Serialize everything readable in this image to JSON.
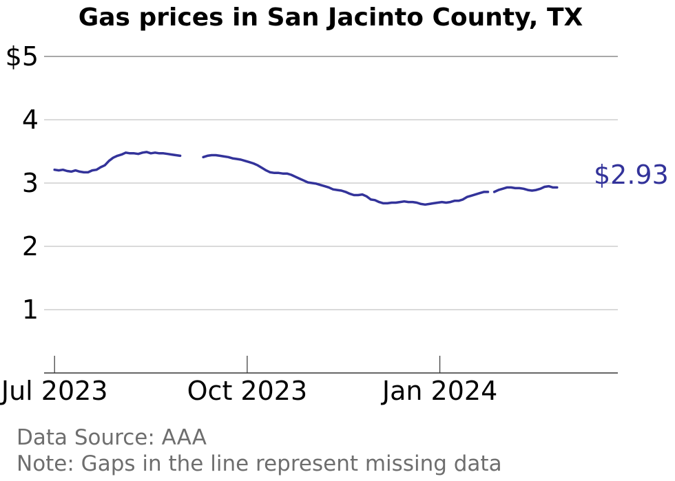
{
  "chart_data": {
    "type": "line",
    "title": "Gas prices in San Jacinto County, TX",
    "y_ticks": [
      "$5",
      "4",
      "3",
      "2",
      "1"
    ],
    "y_tick_values": [
      5,
      4,
      3,
      2,
      1
    ],
    "ylim": [
      0,
      5
    ],
    "x_ticks": [
      "Jul 2023",
      "Oct 2023",
      "Jan 2024"
    ],
    "x_tick_dates": [
      "2023-07-01",
      "2023-10-01",
      "2024-01-01"
    ],
    "xlim": [
      "2023-06-26",
      "2024-03-26"
    ],
    "grid": true,
    "last_value_label": "$2.93",
    "line_color": "#33339a",
    "series": [
      {
        "segments": [
          [
            [
              "2023-07-01",
              3.21
            ],
            [
              "2023-07-03",
              3.2
            ],
            [
              "2023-07-05",
              3.21
            ],
            [
              "2023-07-07",
              3.19
            ],
            [
              "2023-07-09",
              3.18
            ],
            [
              "2023-07-11",
              3.2
            ],
            [
              "2023-07-13",
              3.18
            ],
            [
              "2023-07-15",
              3.17
            ],
            [
              "2023-07-17",
              3.17
            ],
            [
              "2023-07-19",
              3.2
            ],
            [
              "2023-07-21",
              3.21
            ],
            [
              "2023-07-23",
              3.25
            ],
            [
              "2023-07-25",
              3.28
            ],
            [
              "2023-07-27",
              3.35
            ],
            [
              "2023-07-29",
              3.4
            ],
            [
              "2023-07-31",
              3.43
            ],
            [
              "2023-08-02",
              3.45
            ],
            [
              "2023-08-04",
              3.48
            ],
            [
              "2023-08-06",
              3.47
            ],
            [
              "2023-08-08",
              3.47
            ],
            [
              "2023-08-10",
              3.46
            ],
            [
              "2023-08-12",
              3.48
            ],
            [
              "2023-08-14",
              3.49
            ],
            [
              "2023-08-16",
              3.47
            ],
            [
              "2023-08-18",
              3.48
            ],
            [
              "2023-08-20",
              3.47
            ],
            [
              "2023-08-22",
              3.47
            ],
            [
              "2023-08-24",
              3.46
            ],
            [
              "2023-08-26",
              3.45
            ],
            [
              "2023-08-28",
              3.44
            ],
            [
              "2023-08-30",
              3.43
            ]
          ],
          [
            [
              "2023-09-10",
              3.41
            ],
            [
              "2023-09-12",
              3.43
            ],
            [
              "2023-09-14",
              3.44
            ],
            [
              "2023-09-16",
              3.44
            ],
            [
              "2023-09-18",
              3.43
            ],
            [
              "2023-09-20",
              3.42
            ],
            [
              "2023-09-22",
              3.41
            ],
            [
              "2023-09-24",
              3.39
            ],
            [
              "2023-09-26",
              3.38
            ],
            [
              "2023-09-28",
              3.37
            ],
            [
              "2023-09-30",
              3.35
            ],
            [
              "2023-10-02",
              3.33
            ],
            [
              "2023-10-04",
              3.31
            ],
            [
              "2023-10-06",
              3.28
            ],
            [
              "2023-10-08",
              3.24
            ],
            [
              "2023-10-10",
              3.2
            ],
            [
              "2023-10-12",
              3.17
            ],
            [
              "2023-10-14",
              3.16
            ],
            [
              "2023-10-16",
              3.16
            ],
            [
              "2023-10-18",
              3.15
            ],
            [
              "2023-10-20",
              3.15
            ],
            [
              "2023-10-22",
              3.13
            ],
            [
              "2023-10-24",
              3.1
            ],
            [
              "2023-10-26",
              3.07
            ],
            [
              "2023-10-28",
              3.04
            ],
            [
              "2023-10-30",
              3.01
            ],
            [
              "2023-11-01",
              3.0
            ],
            [
              "2023-11-03",
              2.99
            ],
            [
              "2023-11-05",
              2.97
            ],
            [
              "2023-11-07",
              2.95
            ],
            [
              "2023-11-09",
              2.93
            ],
            [
              "2023-11-11",
              2.9
            ],
            [
              "2023-11-13",
              2.89
            ],
            [
              "2023-11-15",
              2.88
            ],
            [
              "2023-11-17",
              2.86
            ],
            [
              "2023-11-19",
              2.83
            ],
            [
              "2023-11-21",
              2.81
            ],
            [
              "2023-11-23",
              2.81
            ],
            [
              "2023-11-25",
              2.82
            ],
            [
              "2023-11-27",
              2.79
            ],
            [
              "2023-11-29",
              2.74
            ],
            [
              "2023-12-01",
              2.73
            ],
            [
              "2023-12-03",
              2.7
            ],
            [
              "2023-12-05",
              2.68
            ],
            [
              "2023-12-07",
              2.68
            ],
            [
              "2023-12-09",
              2.69
            ],
            [
              "2023-12-11",
              2.69
            ],
            [
              "2023-12-13",
              2.7
            ],
            [
              "2023-12-15",
              2.71
            ],
            [
              "2023-12-17",
              2.7
            ],
            [
              "2023-12-19",
              2.7
            ],
            [
              "2023-12-21",
              2.69
            ],
            [
              "2023-12-23",
              2.67
            ],
            [
              "2023-12-25",
              2.66
            ],
            [
              "2023-12-27",
              2.67
            ],
            [
              "2023-12-29",
              2.68
            ],
            [
              "2023-12-31",
              2.69
            ],
            [
              "2024-01-02",
              2.7
            ],
            [
              "2024-01-04",
              2.69
            ],
            [
              "2024-01-06",
              2.7
            ],
            [
              "2024-01-08",
              2.72
            ],
            [
              "2024-01-10",
              2.72
            ],
            [
              "2024-01-12",
              2.74
            ],
            [
              "2024-01-14",
              2.78
            ],
            [
              "2024-01-16",
              2.8
            ],
            [
              "2024-01-18",
              2.82
            ],
            [
              "2024-01-20",
              2.84
            ],
            [
              "2024-01-22",
              2.86
            ],
            [
              "2024-01-24",
              2.86
            ]
          ],
          [
            [
              "2024-01-27",
              2.86
            ],
            [
              "2024-01-29",
              2.89
            ],
            [
              "2024-01-31",
              2.91
            ],
            [
              "2024-02-02",
              2.93
            ],
            [
              "2024-02-04",
              2.93
            ],
            [
              "2024-02-06",
              2.92
            ],
            [
              "2024-02-08",
              2.92
            ],
            [
              "2024-02-10",
              2.91
            ],
            [
              "2024-02-12",
              2.89
            ],
            [
              "2024-02-14",
              2.88
            ],
            [
              "2024-02-16",
              2.89
            ],
            [
              "2024-02-18",
              2.91
            ],
            [
              "2024-02-20",
              2.94
            ],
            [
              "2024-02-22",
              2.95
            ],
            [
              "2024-02-24",
              2.93
            ],
            [
              "2024-02-26",
              2.93
            ]
          ]
        ]
      }
    ]
  },
  "footer": {
    "source": "Data Source: AAA",
    "note": "Note: Gaps in the line represent missing data"
  }
}
